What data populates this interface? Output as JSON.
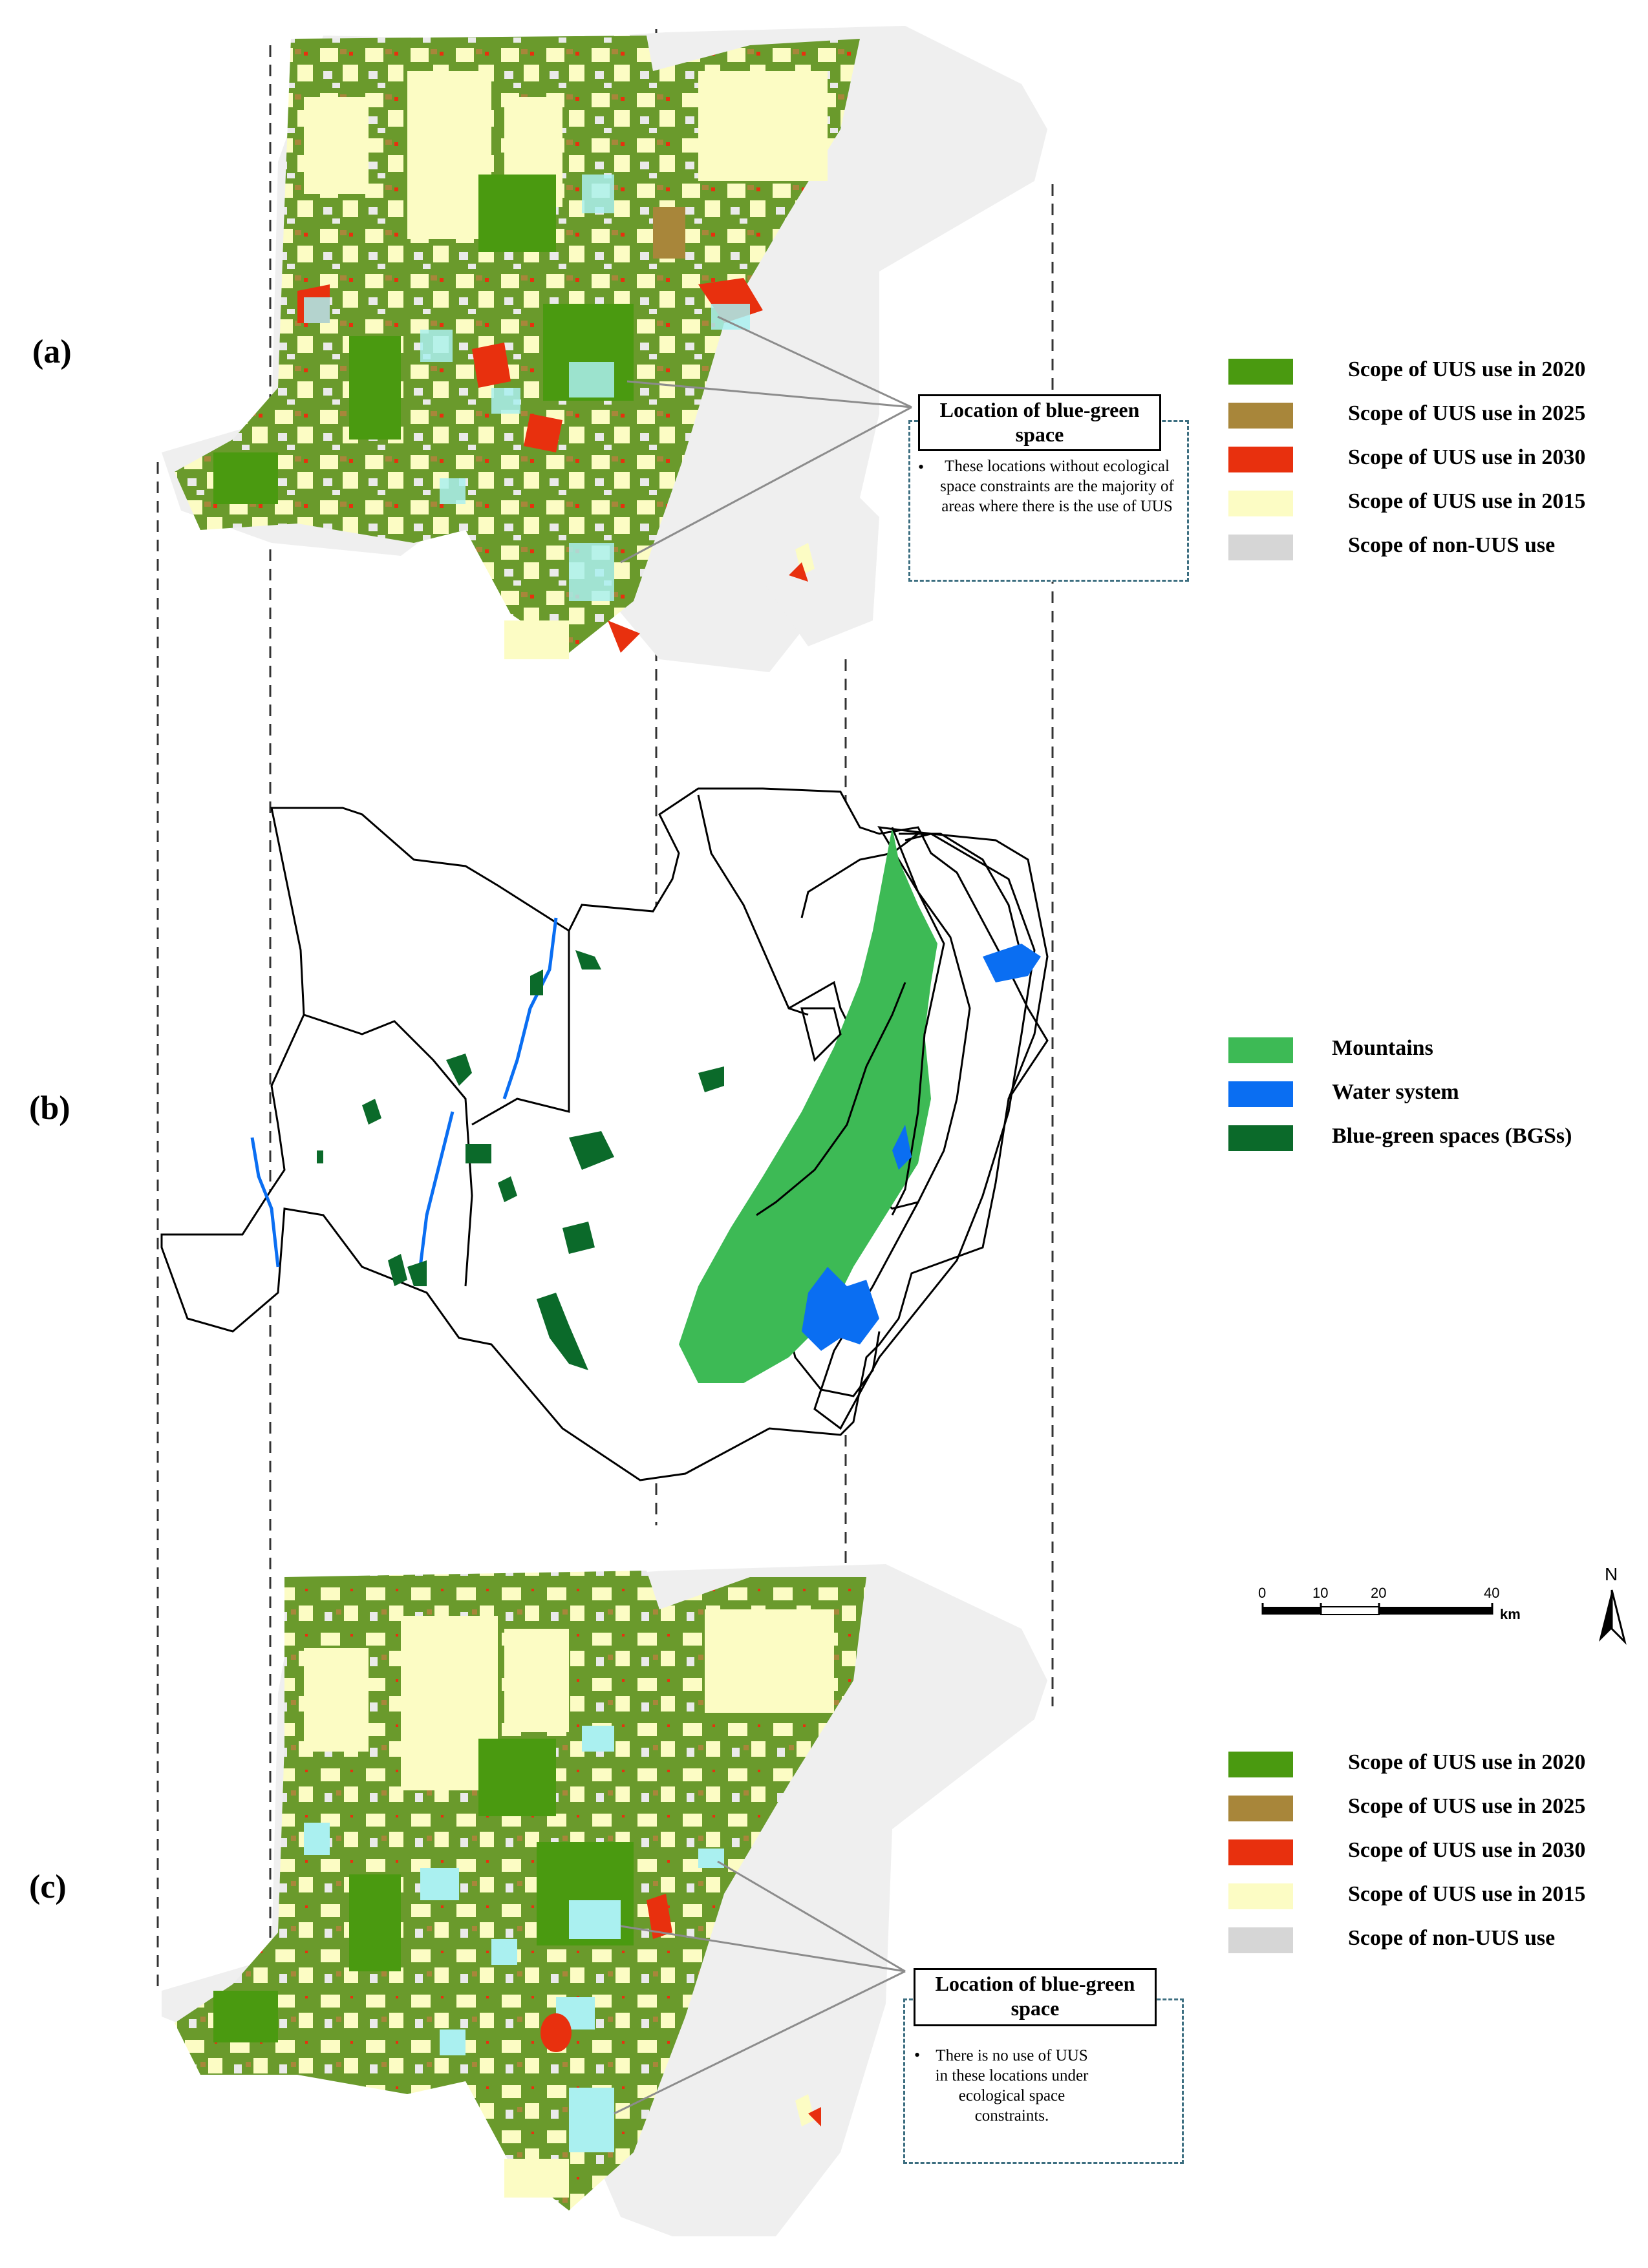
{
  "panels": {
    "a": {
      "label": "(a)"
    },
    "b": {
      "label": "(b)"
    },
    "c": {
      "label": "(c)"
    }
  },
  "legend_a": {
    "items": [
      {
        "label": "Scope of UUS use in 2020",
        "color": "#4a9a10"
      },
      {
        "label": "Scope of UUS use in 2025",
        "color": "#a8863a"
      },
      {
        "label": "Scope of UUS use in 2030",
        "color": "#e8300e"
      },
      {
        "label": "Scope of UUS use in 2015",
        "color": "#fcfcc4"
      },
      {
        "label": "Scope of non-UUS use",
        "color": "#d6d6d6"
      }
    ]
  },
  "legend_b": {
    "items": [
      {
        "label": "Mountains",
        "color": "#3dba55"
      },
      {
        "label": "Water system",
        "color": "#0a6ef2"
      },
      {
        "label": "Blue-green spaces (BGSs)",
        "color": "#0b6a2a"
      }
    ]
  },
  "legend_c": {
    "items": [
      {
        "label": "Scope of UUS use in 2020",
        "color": "#4a9a10"
      },
      {
        "label": "Scope of UUS use in 2025",
        "color": "#a8863a"
      },
      {
        "label": "Scope of UUS use in 2030",
        "color": "#e8300e"
      },
      {
        "label": "Scope of UUS use in 2015",
        "color": "#fcfcc4"
      },
      {
        "label": "Scope of non-UUS use",
        "color": "#d6d6d6"
      }
    ]
  },
  "callout_a": {
    "title": "Location of blue-green space",
    "bullet": "•",
    "text": "These locations without ecological space constraints are the majority of areas where there is the use of UUS"
  },
  "callout_c": {
    "title": "Location of blue-green space",
    "bullet": "•",
    "text": "There is no use of UUS in these locations under ecological space constraints."
  },
  "scale_bar": {
    "ticks": [
      "0",
      "10",
      "20",
      "40"
    ],
    "unit": "km"
  },
  "north_arrow": {
    "label": "N"
  },
  "colors": {
    "bgs_highlight": "#aaf0f0",
    "base_gray": "#efefef",
    "mountain": "#3dba55",
    "water": "#0a6ef2",
    "bgs": "#0b6a2a"
  }
}
